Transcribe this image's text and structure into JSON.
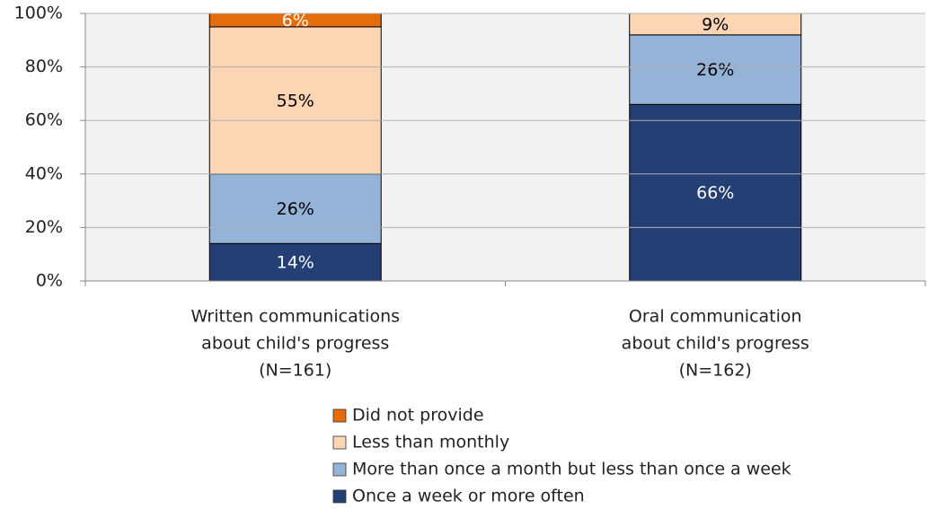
{
  "chart_data": {
    "type": "stacked_bar",
    "categories": [
      [
        "Written communications",
        "about child's progress",
        "(N=161)"
      ],
      [
        "Oral communication",
        "about child's progress",
        "(N=162)"
      ]
    ],
    "series": [
      {
        "name": "Once a week or more often",
        "color": "#243f73",
        "label_color": "#ffffff",
        "values": [
          14,
          66
        ],
        "value_labels": [
          "14%",
          "66%"
        ]
      },
      {
        "name": "More than once a month but less than once a week",
        "color": "#95b3d7",
        "label_color": "#000000",
        "values": [
          26,
          26
        ],
        "value_labels": [
          "26%",
          "26%"
        ]
      },
      {
        "name": "Less than monthly",
        "color": "#fcd5b4",
        "label_color": "#000000",
        "values": [
          55,
          9
        ],
        "value_labels": [
          "55%",
          "9%"
        ]
      },
      {
        "name": "Did not provide",
        "color": "#e46c0a",
        "label_color": "#ffffff",
        "values": [
          6,
          0
        ],
        "value_labels": [
          "6%",
          null
        ]
      }
    ],
    "ylim": [
      0,
      100
    ],
    "yticks": [
      {
        "value": 0,
        "label": "0%"
      },
      {
        "value": 20,
        "label": "20%"
      },
      {
        "value": 40,
        "label": "40%"
      },
      {
        "value": 60,
        "label": "60%"
      },
      {
        "value": 80,
        "label": "80%"
      },
      {
        "value": 100,
        "label": "100%"
      }
    ],
    "grid": true,
    "legend": "bottom"
  }
}
